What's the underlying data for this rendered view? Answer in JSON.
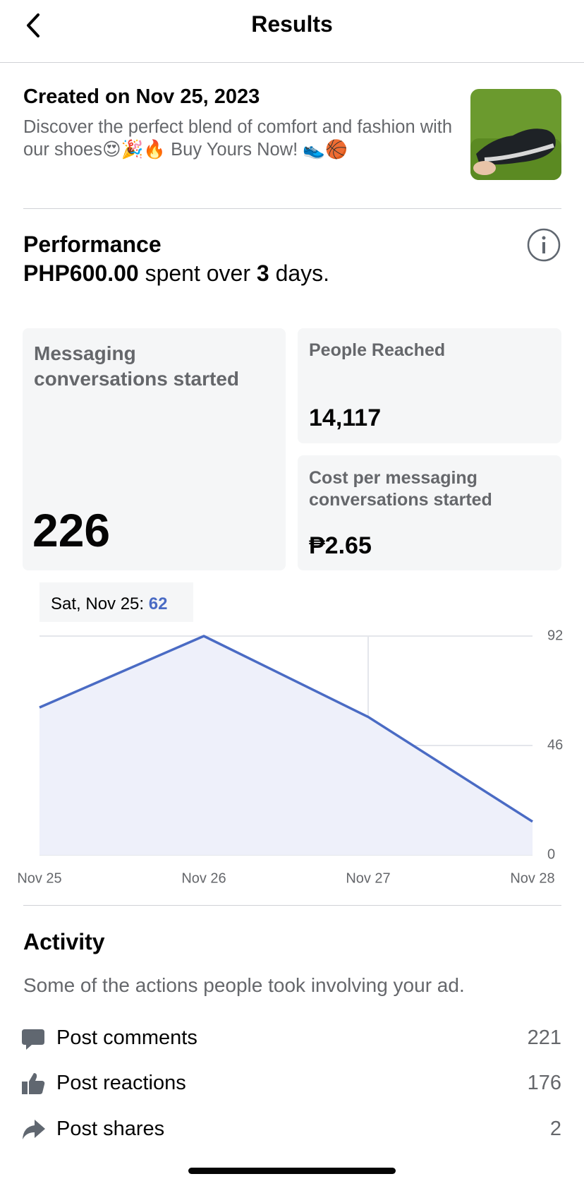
{
  "header": {
    "title": "Results"
  },
  "ad": {
    "created": "Created on Nov 25, 2023",
    "description": "Discover the perfect blend of comfort and fashion with our shoes😍🎉🔥 Buy Yours Now! 👟🏀"
  },
  "performance": {
    "title": "Performance",
    "amount": "PHP600.00",
    "spent_over": "spent over",
    "days": 3,
    "days_unit": "days."
  },
  "metrics": [
    {
      "label": "Messaging conversations started",
      "value": "226"
    },
    {
      "label": "People Reached",
      "value": "14,117"
    },
    {
      "label": "Cost per messaging conversations started",
      "value": "₱2.65"
    }
  ],
  "chart_data": {
    "type": "line",
    "categories": [
      "Nov 25",
      "Nov 26",
      "Nov 27",
      "Nov 28"
    ],
    "values": [
      62,
      92,
      58,
      14
    ],
    "color": "#4a6bc4",
    "ylim": [
      0,
      92
    ],
    "yticks": [
      0,
      46,
      92
    ],
    "grid": true,
    "tooltip": "Sat, Nov 25:"
  },
  "activity": {
    "title": "Activity",
    "subtitle": "Some of the actions people took involving your ad.",
    "rows": [
      {
        "label": "Post comments",
        "value": 221
      },
      {
        "label": "Post reactions",
        "value": 176
      },
      {
        "label": "Post shares",
        "value": 2
      }
    ]
  }
}
